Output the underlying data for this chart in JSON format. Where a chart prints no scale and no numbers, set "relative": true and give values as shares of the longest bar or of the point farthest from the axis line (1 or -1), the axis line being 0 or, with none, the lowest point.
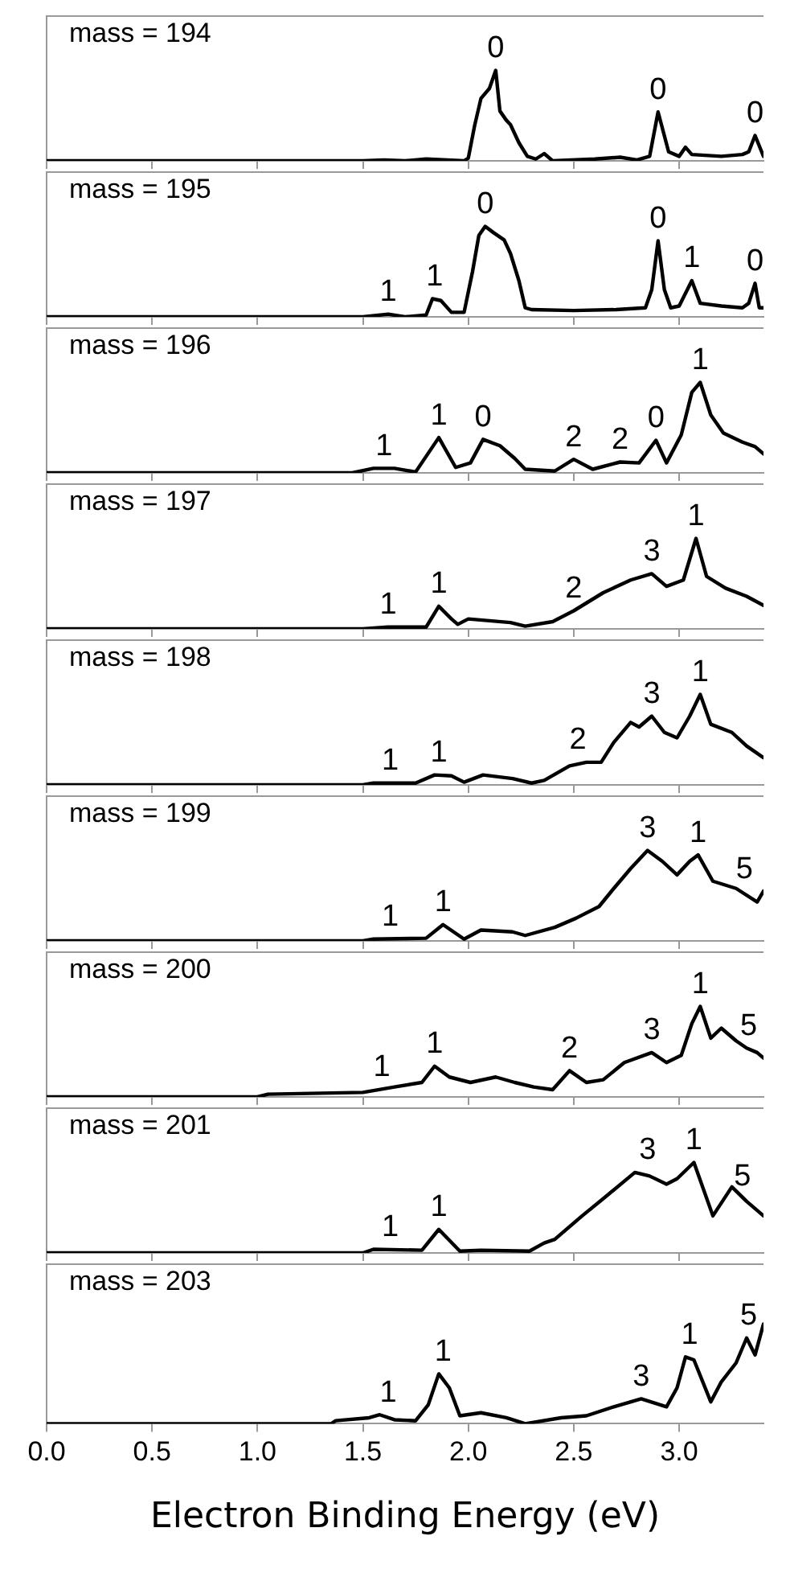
{
  "chart_data": [
    {
      "type": "line",
      "relative": true,
      "color": "#000000",
      "xlim": [
        0,
        3.4
      ],
      "xticks": [
        {
          "value": 0,
          "label": null
        },
        {
          "value": 0.5,
          "label": null
        },
        {
          "value": 1,
          "label": null
        },
        {
          "value": 1.5,
          "label": null
        },
        {
          "value": 2,
          "label": null
        },
        {
          "value": 2.5,
          "label": null
        },
        {
          "value": 3,
          "label": null
        }
      ],
      "tick_labels": false,
      "x": [
        0,
        1.5,
        1.6,
        1.7,
        1.8,
        1.98,
        2.0,
        2.03,
        2.06,
        2.1,
        2.13,
        2.15,
        2.18,
        2.2,
        2.24,
        2.28,
        2.32,
        2.36,
        2.4,
        2.6,
        2.72,
        2.8,
        2.86,
        2.9,
        2.95,
        3.0,
        3.03,
        3.06,
        3.2,
        3.3,
        3.33,
        3.36,
        3.4
      ],
      "values": [
        0,
        0,
        0.01,
        0,
        0.02,
        0,
        0.03,
        0.39,
        0.69,
        0.8,
        1.0,
        0.55,
        0.45,
        0.4,
        0.2,
        0.05,
        0.02,
        0.08,
        0,
        0.02,
        0.04,
        0.01,
        0.05,
        0.54,
        0.1,
        0.05,
        0.15,
        0.07,
        0.05,
        0.07,
        0.1,
        0.28,
        0.05
      ],
      "annotations": [
        "mass = 194",
        {
          "text": "0",
          "x": 2.13,
          "y": 1.0
        },
        {
          "text": "0",
          "x": 2.9,
          "y": 0.54
        },
        {
          "text": "0",
          "x": 3.36,
          "y": 0.28
        }
      ]
    },
    {
      "type": "line",
      "relative": true,
      "color": "#000000",
      "xlim": [
        0,
        3.4
      ],
      "xticks": [
        {
          "value": 0,
          "label": null
        },
        {
          "value": 0.5,
          "label": null
        },
        {
          "value": 1,
          "label": null
        },
        {
          "value": 1.5,
          "label": null
        },
        {
          "value": 2,
          "label": null
        },
        {
          "value": 2.5,
          "label": null
        },
        {
          "value": 3,
          "label": null
        }
      ],
      "tick_labels": false,
      "x": [
        0,
        1.5,
        1.62,
        1.7,
        1.8,
        1.83,
        1.87,
        1.92,
        1.98,
        2.02,
        2.05,
        2.08,
        2.12,
        2.17,
        2.2,
        2.24,
        2.27,
        2.3,
        2.5,
        2.7,
        2.84,
        2.87,
        2.9,
        2.93,
        2.96,
        3.0,
        3.06,
        3.1,
        3.2,
        3.3,
        3.33,
        3.36,
        3.38,
        3.4
      ],
      "values": [
        0,
        0,
        0.03,
        0,
        0.02,
        0.2,
        0.18,
        0.05,
        0.05,
        0.5,
        0.9,
        1.0,
        0.93,
        0.85,
        0.7,
        0.4,
        0.1,
        0.08,
        0.07,
        0.08,
        0.1,
        0.3,
        0.84,
        0.3,
        0.1,
        0.12,
        0.4,
        0.15,
        0.12,
        0.1,
        0.15,
        0.37,
        0.1,
        0.1
      ],
      "annotations": [
        "mass = 195",
        {
          "text": "1",
          "x": 1.62,
          "y": 0.03
        },
        {
          "text": "1",
          "x": 1.84,
          "y": 0.2
        },
        {
          "text": "0",
          "x": 2.08,
          "y": 1.0
        },
        {
          "text": "0",
          "x": 2.9,
          "y": 0.84
        },
        {
          "text": "1",
          "x": 3.06,
          "y": 0.4
        },
        {
          "text": "0",
          "x": 3.36,
          "y": 0.37
        }
      ]
    },
    {
      "type": "line",
      "relative": true,
      "color": "#000000",
      "xlim": [
        0,
        3.4
      ],
      "xticks": [
        {
          "value": 0,
          "label": null
        },
        {
          "value": 0.5,
          "label": null
        },
        {
          "value": 1,
          "label": null
        },
        {
          "value": 1.5,
          "label": null
        },
        {
          "value": 2,
          "label": null
        },
        {
          "value": 2.5,
          "label": null
        },
        {
          "value": 3,
          "label": null
        }
      ],
      "tick_labels": false,
      "x": [
        0,
        1.45,
        1.55,
        1.65,
        1.75,
        1.86,
        1.94,
        2.01,
        2.07,
        2.15,
        2.22,
        2.27,
        2.41,
        2.5,
        2.59,
        2.72,
        2.81,
        2.89,
        2.94,
        3.01,
        3.06,
        3.1,
        3.15,
        3.21,
        3.3,
        3.36,
        3.4
      ],
      "values": [
        0,
        0,
        0.05,
        0.05,
        0.01,
        0.39,
        0.06,
        0.11,
        0.37,
        0.3,
        0.16,
        0.04,
        0.02,
        0.15,
        0.04,
        0.12,
        0.11,
        0.36,
        0.11,
        0.42,
        0.89,
        1.0,
        0.64,
        0.44,
        0.34,
        0.29,
        0.21
      ],
      "annotations": [
        "mass = 196",
        {
          "text": "1",
          "x": 1.6,
          "y": 0.05
        },
        {
          "text": "1",
          "x": 1.86,
          "y": 0.39
        },
        {
          "text": "0",
          "x": 2.07,
          "y": 0.37
        },
        {
          "text": "2",
          "x": 2.5,
          "y": 0.15
        },
        {
          "text": "2",
          "x": 2.72,
          "y": 0.12
        },
        {
          "text": "0",
          "x": 2.89,
          "y": 0.36
        },
        {
          "text": "1",
          "x": 3.1,
          "y": 1.0
        }
      ]
    },
    {
      "type": "line",
      "relative": true,
      "color": "#000000",
      "xlim": [
        0,
        3.4
      ],
      "xticks": [
        {
          "value": 0,
          "label": null
        },
        {
          "value": 0.5,
          "label": null
        },
        {
          "value": 1,
          "label": null
        },
        {
          "value": 1.5,
          "label": null
        },
        {
          "value": 2,
          "label": null
        },
        {
          "value": 2.5,
          "label": null
        },
        {
          "value": 3,
          "label": null
        }
      ],
      "tick_labels": false,
      "x": [
        0,
        1.5,
        1.62,
        1.8,
        1.86,
        1.92,
        1.95,
        2.0,
        2.1,
        2.2,
        2.27,
        2.4,
        2.5,
        2.64,
        2.77,
        2.87,
        2.94,
        3.02,
        3.08,
        3.13,
        3.22,
        3.32,
        3.4
      ],
      "values": [
        0,
        0,
        0.02,
        0.02,
        0.25,
        0.11,
        0.05,
        0.11,
        0.09,
        0.07,
        0.03,
        0.08,
        0.2,
        0.4,
        0.54,
        0.61,
        0.47,
        0.54,
        1.0,
        0.58,
        0.45,
        0.36,
        0.26
      ],
      "annotations": [
        "mass = 197",
        {
          "text": "1",
          "x": 1.62,
          "y": 0.02
        },
        {
          "text": "1",
          "x": 1.86,
          "y": 0.25
        },
        {
          "text": "2",
          "x": 2.5,
          "y": 0.2
        },
        {
          "text": "3",
          "x": 2.87,
          "y": 0.61
        },
        {
          "text": "1",
          "x": 3.08,
          "y": 1.0
        }
      ]
    },
    {
      "type": "line",
      "relative": true,
      "color": "#000000",
      "xlim": [
        0,
        3.4
      ],
      "xticks": [
        {
          "value": 0,
          "label": null
        },
        {
          "value": 0.5,
          "label": null
        },
        {
          "value": 1,
          "label": null
        },
        {
          "value": 1.5,
          "label": null
        },
        {
          "value": 2,
          "label": null
        },
        {
          "value": 2.5,
          "label": null
        },
        {
          "value": 3,
          "label": null
        }
      ],
      "tick_labels": false,
      "x": [
        0,
        1.5,
        1.55,
        1.75,
        1.84,
        1.92,
        1.98,
        2.07,
        2.21,
        2.3,
        2.36,
        2.48,
        2.56,
        2.63,
        2.69,
        2.77,
        2.81,
        2.87,
        2.93,
        2.99,
        3.05,
        3.1,
        3.15,
        3.25,
        3.32,
        3.4
      ],
      "values": [
        0,
        0,
        0.02,
        0.02,
        0.11,
        0.1,
        0.03,
        0.11,
        0.07,
        0.02,
        0.05,
        0.21,
        0.25,
        0.25,
        0.47,
        0.69,
        0.64,
        0.76,
        0.58,
        0.52,
        0.76,
        1.0,
        0.67,
        0.58,
        0.43,
        0.3
      ],
      "annotations": [
        "mass = 198",
        {
          "text": "1",
          "x": 1.63,
          "y": 0.02
        },
        {
          "text": "1",
          "x": 1.86,
          "y": 0.11
        },
        {
          "text": "2",
          "x": 2.52,
          "y": 0.25
        },
        {
          "text": "3",
          "x": 2.87,
          "y": 0.76
        },
        {
          "text": "1",
          "x": 3.1,
          "y": 1.0
        }
      ]
    },
    {
      "type": "line",
      "relative": true,
      "color": "#000000",
      "xlim": [
        0,
        3.4
      ],
      "xticks": [
        {
          "value": 0,
          "label": null
        },
        {
          "value": 0.5,
          "label": null
        },
        {
          "value": 1,
          "label": null
        },
        {
          "value": 1.5,
          "label": null
        },
        {
          "value": 2,
          "label": null
        },
        {
          "value": 2.5,
          "label": null
        },
        {
          "value": 3,
          "label": null
        }
      ],
      "tick_labels": false,
      "x": [
        0,
        1.5,
        1.55,
        1.8,
        1.88,
        1.98,
        2.06,
        2.21,
        2.27,
        2.41,
        2.51,
        2.62,
        2.69,
        2.77,
        2.85,
        2.92,
        2.99,
        3.05,
        3.09,
        3.16,
        3.27,
        3.37,
        3.4
      ],
      "values": [
        0,
        0,
        0.02,
        0.03,
        0.18,
        0.02,
        0.12,
        0.1,
        0.06,
        0.15,
        0.25,
        0.38,
        0.58,
        0.8,
        1.0,
        0.88,
        0.73,
        0.88,
        0.95,
        0.66,
        0.58,
        0.43,
        0.55
      ],
      "annotations": [
        "mass = 199",
        {
          "text": "1",
          "x": 1.63,
          "y": 0.02
        },
        {
          "text": "1",
          "x": 1.88,
          "y": 0.18
        },
        {
          "text": "3",
          "x": 2.85,
          "y": 1.0
        },
        {
          "text": "1",
          "x": 3.09,
          "y": 0.95
        },
        {
          "text": "5",
          "x": 3.31,
          "y": 0.55
        }
      ]
    },
    {
      "type": "line",
      "relative": true,
      "color": "#000000",
      "xlim": [
        0,
        3.4
      ],
      "xticks": [
        {
          "value": 0,
          "label": null
        },
        {
          "value": 0.5,
          "label": null
        },
        {
          "value": 1,
          "label": null
        },
        {
          "value": 1.5,
          "label": null
        },
        {
          "value": 2,
          "label": null
        },
        {
          "value": 2.5,
          "label": null
        },
        {
          "value": 3,
          "label": null
        }
      ],
      "tick_labels": false,
      "x": [
        0,
        1.0,
        1.05,
        1.5,
        1.65,
        1.78,
        1.84,
        1.91,
        2.01,
        2.13,
        2.22,
        2.31,
        2.4,
        2.48,
        2.56,
        2.64,
        2.74,
        2.87,
        2.94,
        3.01,
        3.06,
        3.1,
        3.15,
        3.2,
        3.27,
        3.32,
        3.37,
        3.4
      ],
      "values": [
        0,
        0,
        0.03,
        0.05,
        0.11,
        0.16,
        0.34,
        0.22,
        0.16,
        0.22,
        0.16,
        0.11,
        0.08,
        0.29,
        0.16,
        0.19,
        0.38,
        0.49,
        0.38,
        0.46,
        0.81,
        1.0,
        0.65,
        0.76,
        0.62,
        0.54,
        0.49,
        0.43
      ],
      "annotations": [
        "mass = 200",
        {
          "text": "1",
          "x": 1.59,
          "y": 0.08
        },
        {
          "text": "1",
          "x": 1.84,
          "y": 0.34
        },
        {
          "text": "2",
          "x": 2.48,
          "y": 0.29
        },
        {
          "text": "3",
          "x": 2.87,
          "y": 0.49
        },
        {
          "text": "1",
          "x": 3.1,
          "y": 1.0
        },
        {
          "text": "5",
          "x": 3.33,
          "y": 0.54
        }
      ]
    },
    {
      "type": "line",
      "relative": true,
      "color": "#000000",
      "xlim": [
        0,
        3.4
      ],
      "xticks": [
        {
          "value": 0,
          "label": null
        },
        {
          "value": 0.5,
          "label": null
        },
        {
          "value": 1,
          "label": null
        },
        {
          "value": 1.5,
          "label": null
        },
        {
          "value": 2,
          "label": null
        },
        {
          "value": 2.5,
          "label": null
        },
        {
          "value": 3,
          "label": null
        }
      ],
      "tick_labels": false,
      "x": [
        0,
        1.5,
        1.55,
        1.78,
        1.86,
        1.96,
        2.06,
        2.29,
        2.36,
        2.41,
        2.54,
        2.64,
        2.79,
        2.86,
        2.94,
        2.99,
        3.07,
        3.16,
        3.25,
        3.32,
        3.4
      ],
      "values": [
        0,
        0,
        0.04,
        0.03,
        0.26,
        0.02,
        0.03,
        0.02,
        0.11,
        0.15,
        0.41,
        0.6,
        0.89,
        0.85,
        0.76,
        0.82,
        1.0,
        0.41,
        0.73,
        0.57,
        0.41
      ],
      "annotations": [
        "mass = 201",
        {
          "text": "1",
          "x": 1.63,
          "y": 0.04
        },
        {
          "text": "1",
          "x": 1.86,
          "y": 0.26
        },
        {
          "text": "3",
          "x": 2.85,
          "y": 0.89
        },
        {
          "text": "1",
          "x": 3.07,
          "y": 1.0
        },
        {
          "text": "5",
          "x": 3.3,
          "y": 0.6
        }
      ]
    },
    {
      "type": "line",
      "relative": true,
      "color": "#000000",
      "xlim": [
        0,
        3.4
      ],
      "xticks": [
        {
          "value": 0,
          "label": "0.0"
        },
        {
          "value": 0.5,
          "label": "0.5"
        },
        {
          "value": 1,
          "label": "1.0"
        },
        {
          "value": 1.5,
          "label": "1.5"
        },
        {
          "value": 2,
          "label": "2.0"
        },
        {
          "value": 2.5,
          "label": "2.5"
        },
        {
          "value": 3,
          "label": "3.0"
        }
      ],
      "tick_labels": "x",
      "xlabel": "Electron Binding Energy (eV)",
      "x": [
        0,
        1.35,
        1.37,
        1.53,
        1.58,
        1.65,
        1.75,
        1.81,
        1.86,
        1.91,
        1.96,
        2.06,
        2.18,
        2.27,
        2.44,
        2.56,
        2.69,
        2.82,
        2.94,
        2.99,
        3.03,
        3.07,
        3.15,
        3.2,
        3.27,
        3.32,
        3.36,
        3.4
      ],
      "values": [
        0,
        0,
        0.03,
        0.06,
        0.09,
        0.04,
        0.03,
        0.19,
        0.5,
        0.36,
        0.08,
        0.11,
        0.06,
        0,
        0.06,
        0.08,
        0.17,
        0.25,
        0.17,
        0.36,
        0.67,
        0.64,
        0.22,
        0.42,
        0.61,
        0.86,
        0.69,
        1.0
      ],
      "annotations": [
        "mass = 203",
        {
          "text": "1",
          "x": 1.62,
          "y": 0.09
        },
        {
          "text": "1",
          "x": 1.88,
          "y": 0.5
        },
        {
          "text": "3",
          "x": 2.82,
          "y": 0.25
        },
        {
          "text": "1",
          "x": 3.05,
          "y": 0.67
        },
        {
          "text": "5",
          "x": 3.33,
          "y": 0.86
        }
      ]
    }
  ]
}
